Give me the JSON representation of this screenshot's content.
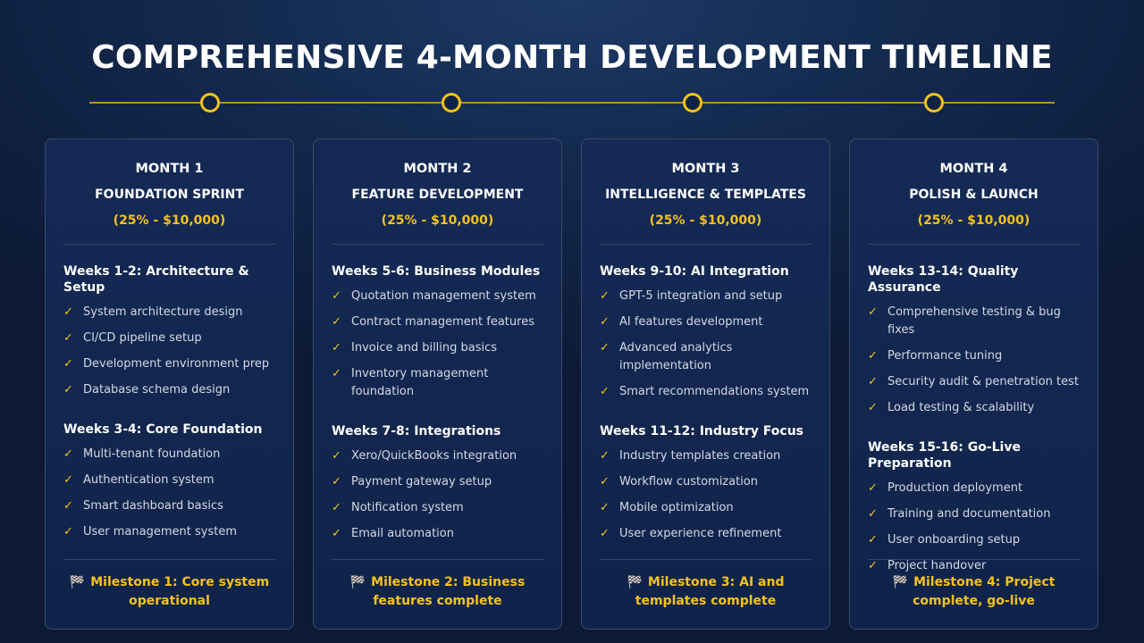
{
  "title": "COMPREHENSIVE 4-MONTH DEVELOPMENT TIMELINE",
  "accent_color": "#f4c21c",
  "milestone_icon": "checkered-flag",
  "months": [
    {
      "month": "MONTH 1",
      "phase": "FOUNDATION SPRINT",
      "budget": "(25% - $10,000)",
      "sections": [
        {
          "title": "Weeks 1-2: Architecture & Setup",
          "items": [
            "System architecture design",
            "CI/CD pipeline setup",
            "Development environment prep",
            "Database schema design"
          ]
        },
        {
          "title": "Weeks 3-4: Core Foundation",
          "items": [
            "Multi-tenant foundation",
            "Authentication system",
            "Smart dashboard basics",
            "User management system"
          ]
        }
      ],
      "milestone": "Milestone 1: Core system operational"
    },
    {
      "month": "MONTH 2",
      "phase": "FEATURE DEVELOPMENT",
      "budget": "(25% - $10,000)",
      "sections": [
        {
          "title": "Weeks 5-6: Business Modules",
          "items": [
            "Quotation management system",
            "Contract management features",
            "Invoice and billing basics",
            "Inventory management foundation"
          ]
        },
        {
          "title": "Weeks 7-8: Integrations",
          "items": [
            "Xero/QuickBooks integration",
            "Payment gateway setup",
            "Notification system",
            "Email automation"
          ]
        }
      ],
      "milestone": "Milestone 2: Business features complete"
    },
    {
      "month": "MONTH 3",
      "phase": "INTELLIGENCE & TEMPLATES",
      "budget": "(25% - $10,000)",
      "sections": [
        {
          "title": "Weeks 9-10: AI Integration",
          "items": [
            "GPT-5 integration and setup",
            "AI features development",
            "Advanced analytics implementation",
            "Smart recommendations system"
          ]
        },
        {
          "title": "Weeks 11-12: Industry Focus",
          "items": [
            "Industry templates creation",
            "Workflow customization",
            "Mobile optimization",
            "User experience refinement"
          ]
        }
      ],
      "milestone": "Milestone 3: AI and templates complete"
    },
    {
      "month": "MONTH 4",
      "phase": "POLISH & LAUNCH",
      "budget": "(25% - $10,000)",
      "sections": [
        {
          "title": "Weeks 13-14: Quality Assurance",
          "items": [
            "Comprehensive testing & bug fixes",
            "Performance tuning",
            "Security audit & penetration test",
            "Load testing & scalability"
          ]
        },
        {
          "title": "Weeks 15-16: Go-Live Preparation",
          "items": [
            "Production deployment",
            "Training and documentation",
            "User onboarding setup",
            "Project handover"
          ]
        }
      ],
      "milestone": "Milestone 4: Project complete, go-live"
    }
  ]
}
